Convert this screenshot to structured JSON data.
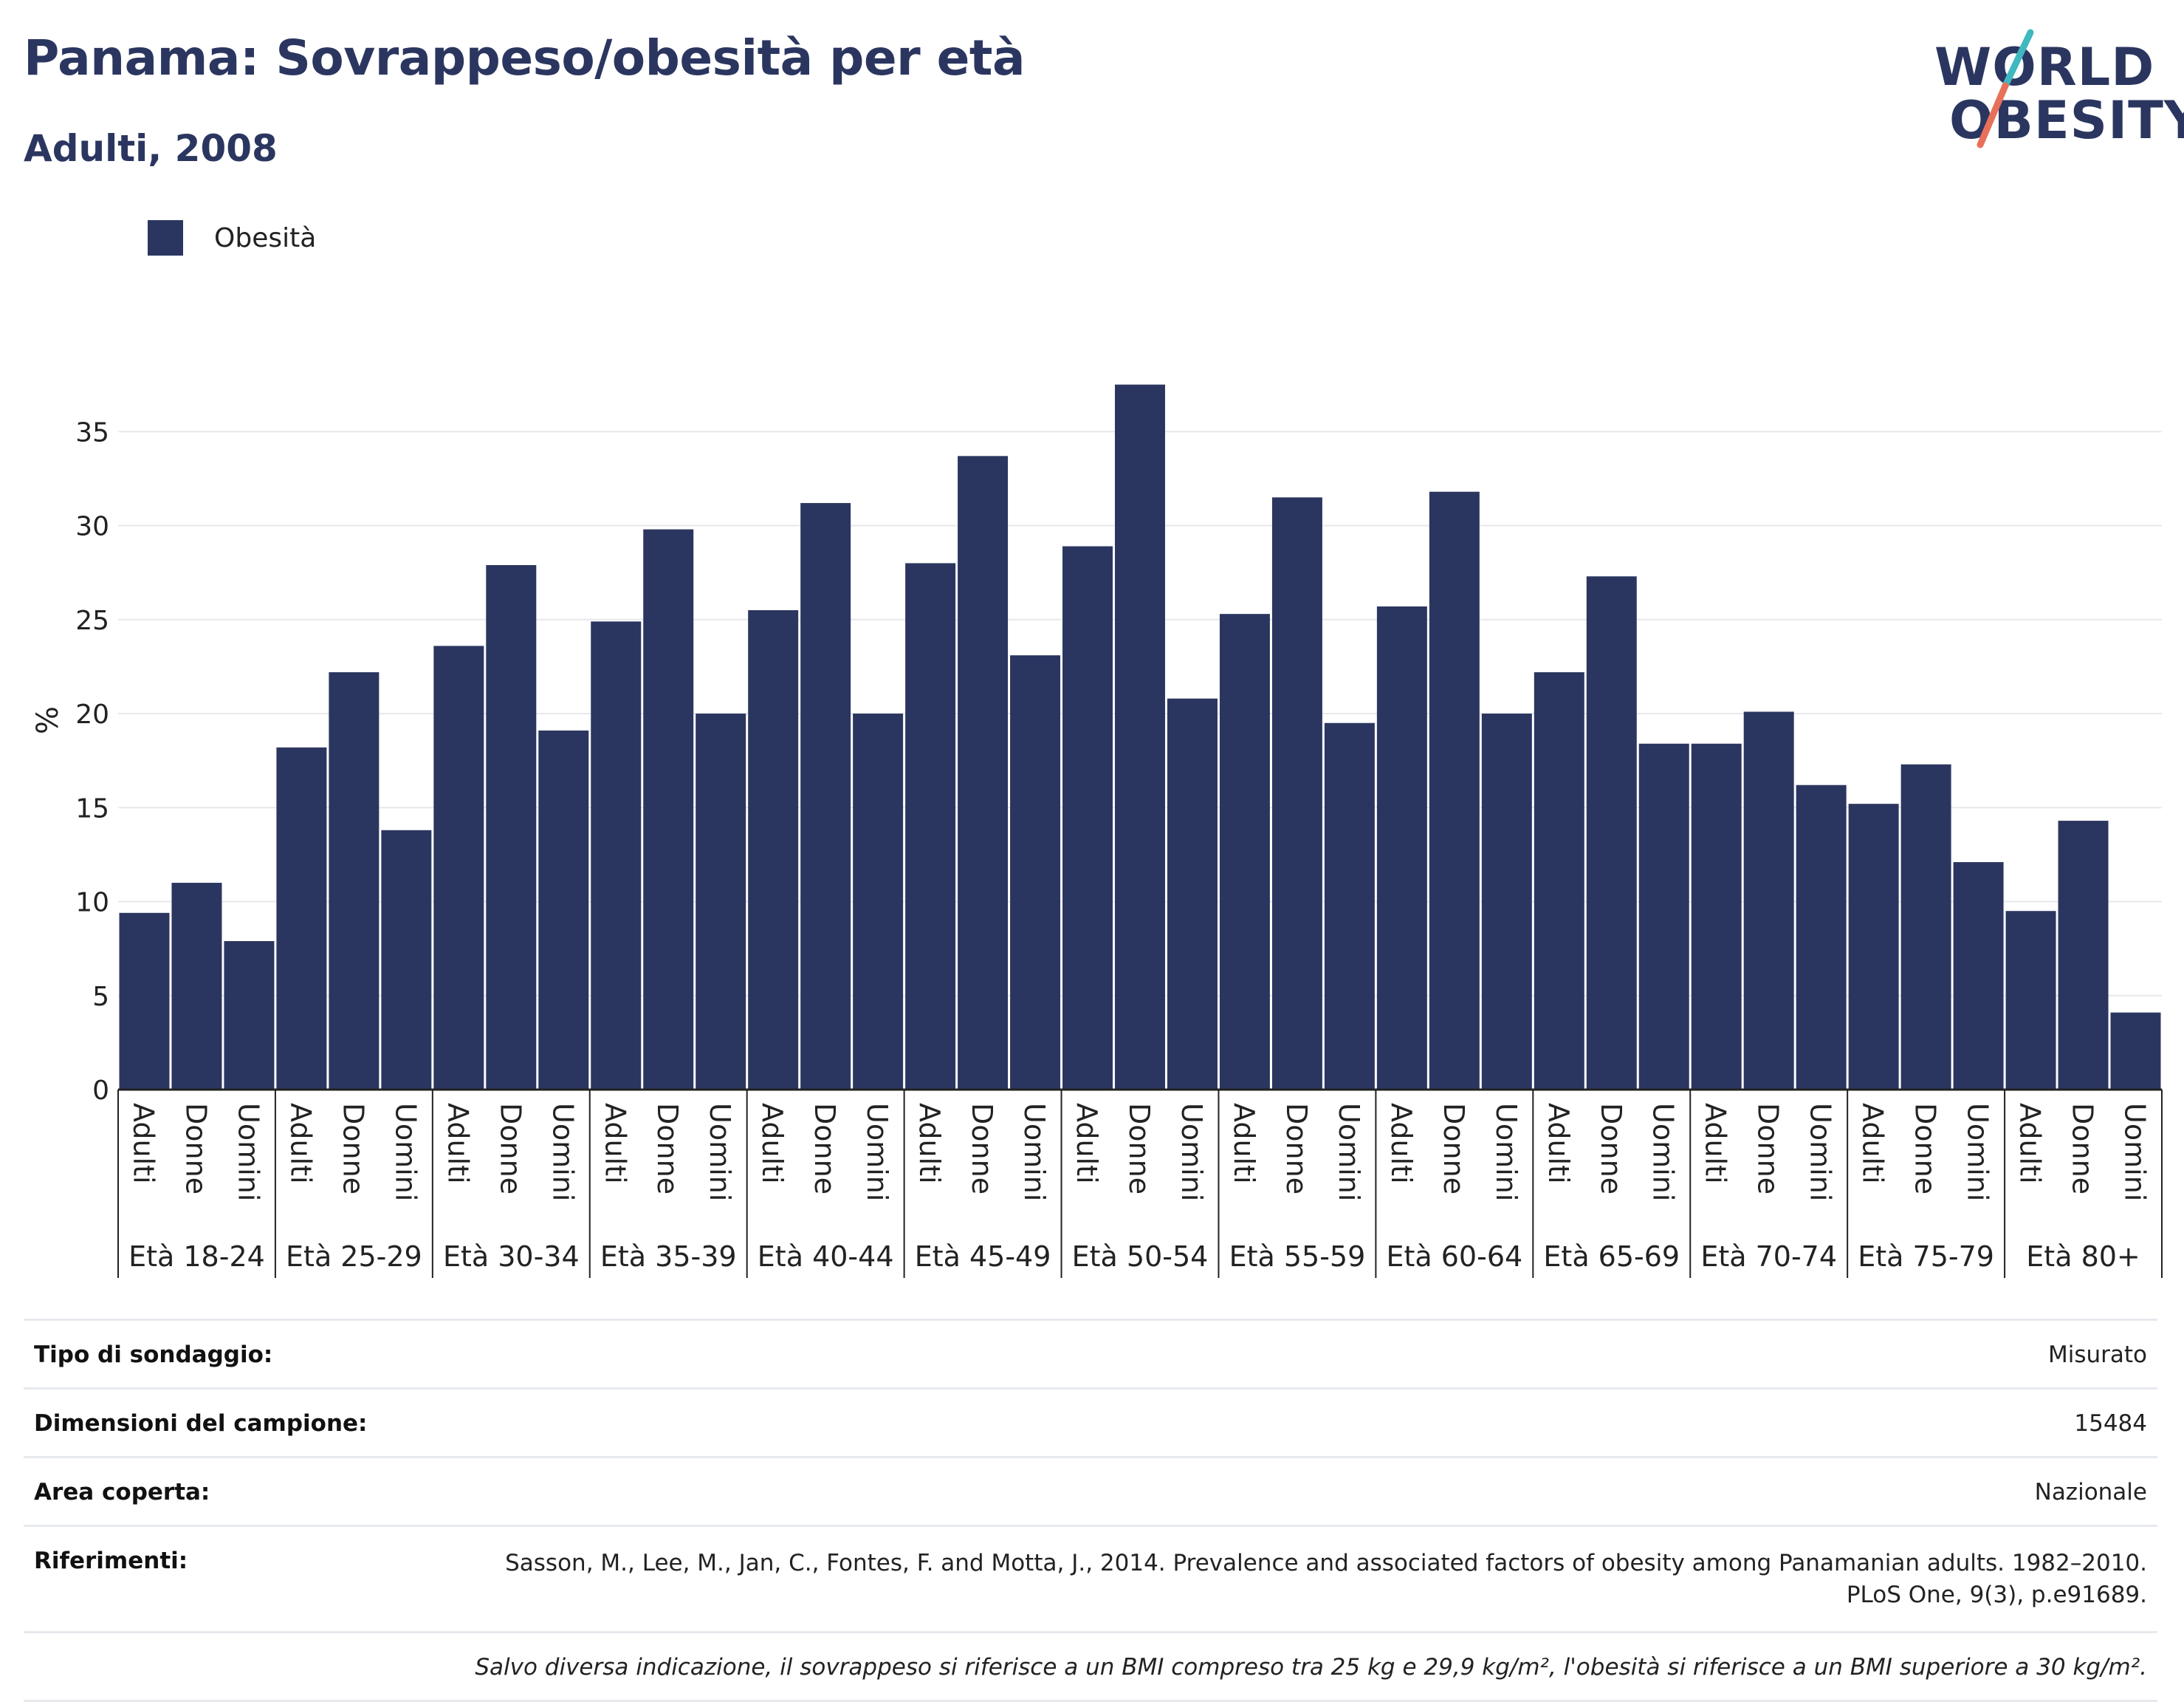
{
  "header": {
    "title": "Panama: Sovrappeso/obesità per età",
    "subtitle": "Adulti, 2008"
  },
  "logo": {
    "line1": "WORLD",
    "line2": "OBESITY",
    "colors": {
      "slash_teal": "#3fb8c0",
      "slash_coral": "#e8705a"
    }
  },
  "legend": {
    "label": "Obesità",
    "color": "#2b3660"
  },
  "chart_data": {
    "type": "bar",
    "ylabel": "%",
    "ylim": [
      0,
      40
    ],
    "yticks": [
      0,
      5,
      10,
      15,
      20,
      25,
      30,
      35
    ],
    "grid": true,
    "legend_position": "top-left",
    "bar_color": "#2b3660",
    "groups": [
      "Età 18-24",
      "Età 25-29",
      "Età 30-34",
      "Età 35-39",
      "Età 40-44",
      "Età 45-49",
      "Età 50-54",
      "Età 55-59",
      "Età 60-64",
      "Età 65-69",
      "Età 70-74",
      "Età 75-79",
      "Età 80+"
    ],
    "subcategories": [
      "Adulti",
      "Donne",
      "Uomini"
    ],
    "series": [
      {
        "name": "Obesità",
        "values": [
          [
            9.4,
            11.0,
            7.9
          ],
          [
            18.2,
            22.2,
            13.8
          ],
          [
            23.6,
            27.9,
            19.1
          ],
          [
            24.9,
            29.8,
            20.0
          ],
          [
            25.5,
            31.2,
            20.0
          ],
          [
            28.0,
            33.7,
            23.1
          ],
          [
            28.9,
            37.5,
            20.8
          ],
          [
            25.3,
            31.5,
            19.5
          ],
          [
            25.7,
            31.8,
            20.0
          ],
          [
            22.2,
            27.3,
            18.4
          ],
          [
            18.4,
            20.1,
            16.2
          ],
          [
            15.2,
            17.3,
            12.1
          ],
          [
            9.5,
            14.3,
            4.1
          ]
        ]
      }
    ]
  },
  "info": [
    {
      "key": "Tipo di sondaggio:",
      "value": "Misurato"
    },
    {
      "key": "Dimensioni del campione:",
      "value": "15484"
    },
    {
      "key": "Area coperta:",
      "value": "Nazionale"
    },
    {
      "key": "Riferimenti:",
      "value": "Sasson, M., Lee, M., Jan, C., Fontes, F. and Motta, J., 2014. Prevalence and associated factors of obesity among Panamanian adults. 1982–2010. PLoS One, 9(3), p.e91689."
    }
  ],
  "note": "Salvo diversa indicazione, il sovrappeso si riferisce a un BMI compreso tra 25 kg e 29,9 kg/m², l'obesità si riferisce a un BMI superiore a 30 kg/m²."
}
